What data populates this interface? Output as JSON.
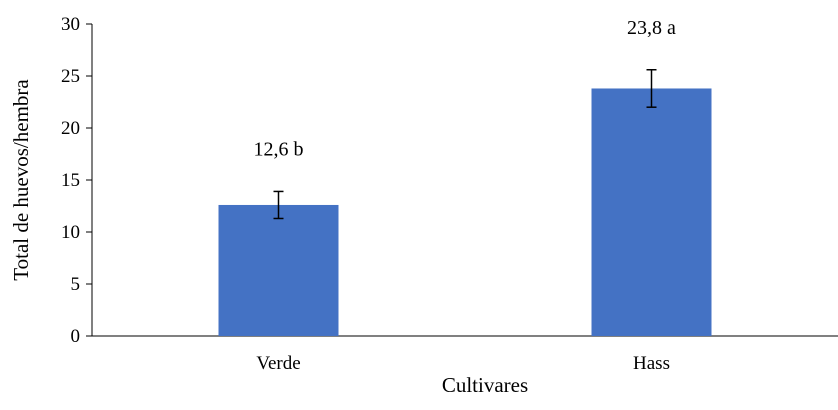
{
  "chart_data": {
    "type": "bar",
    "title": "",
    "xlabel": "Cultivares",
    "ylabel": "Total de huevos/hembra",
    "ylim": [
      0,
      30
    ],
    "yticks": [
      0,
      5,
      10,
      15,
      20,
      25,
      30
    ],
    "categories": [
      "Verde",
      "Hass"
    ],
    "values": [
      12.6,
      23.8
    ],
    "error": [
      1.3,
      1.8
    ],
    "data_labels": [
      "12,6 b",
      "23,8 a"
    ],
    "bar_color": "#4472C4",
    "grid": false,
    "legend": "none"
  }
}
